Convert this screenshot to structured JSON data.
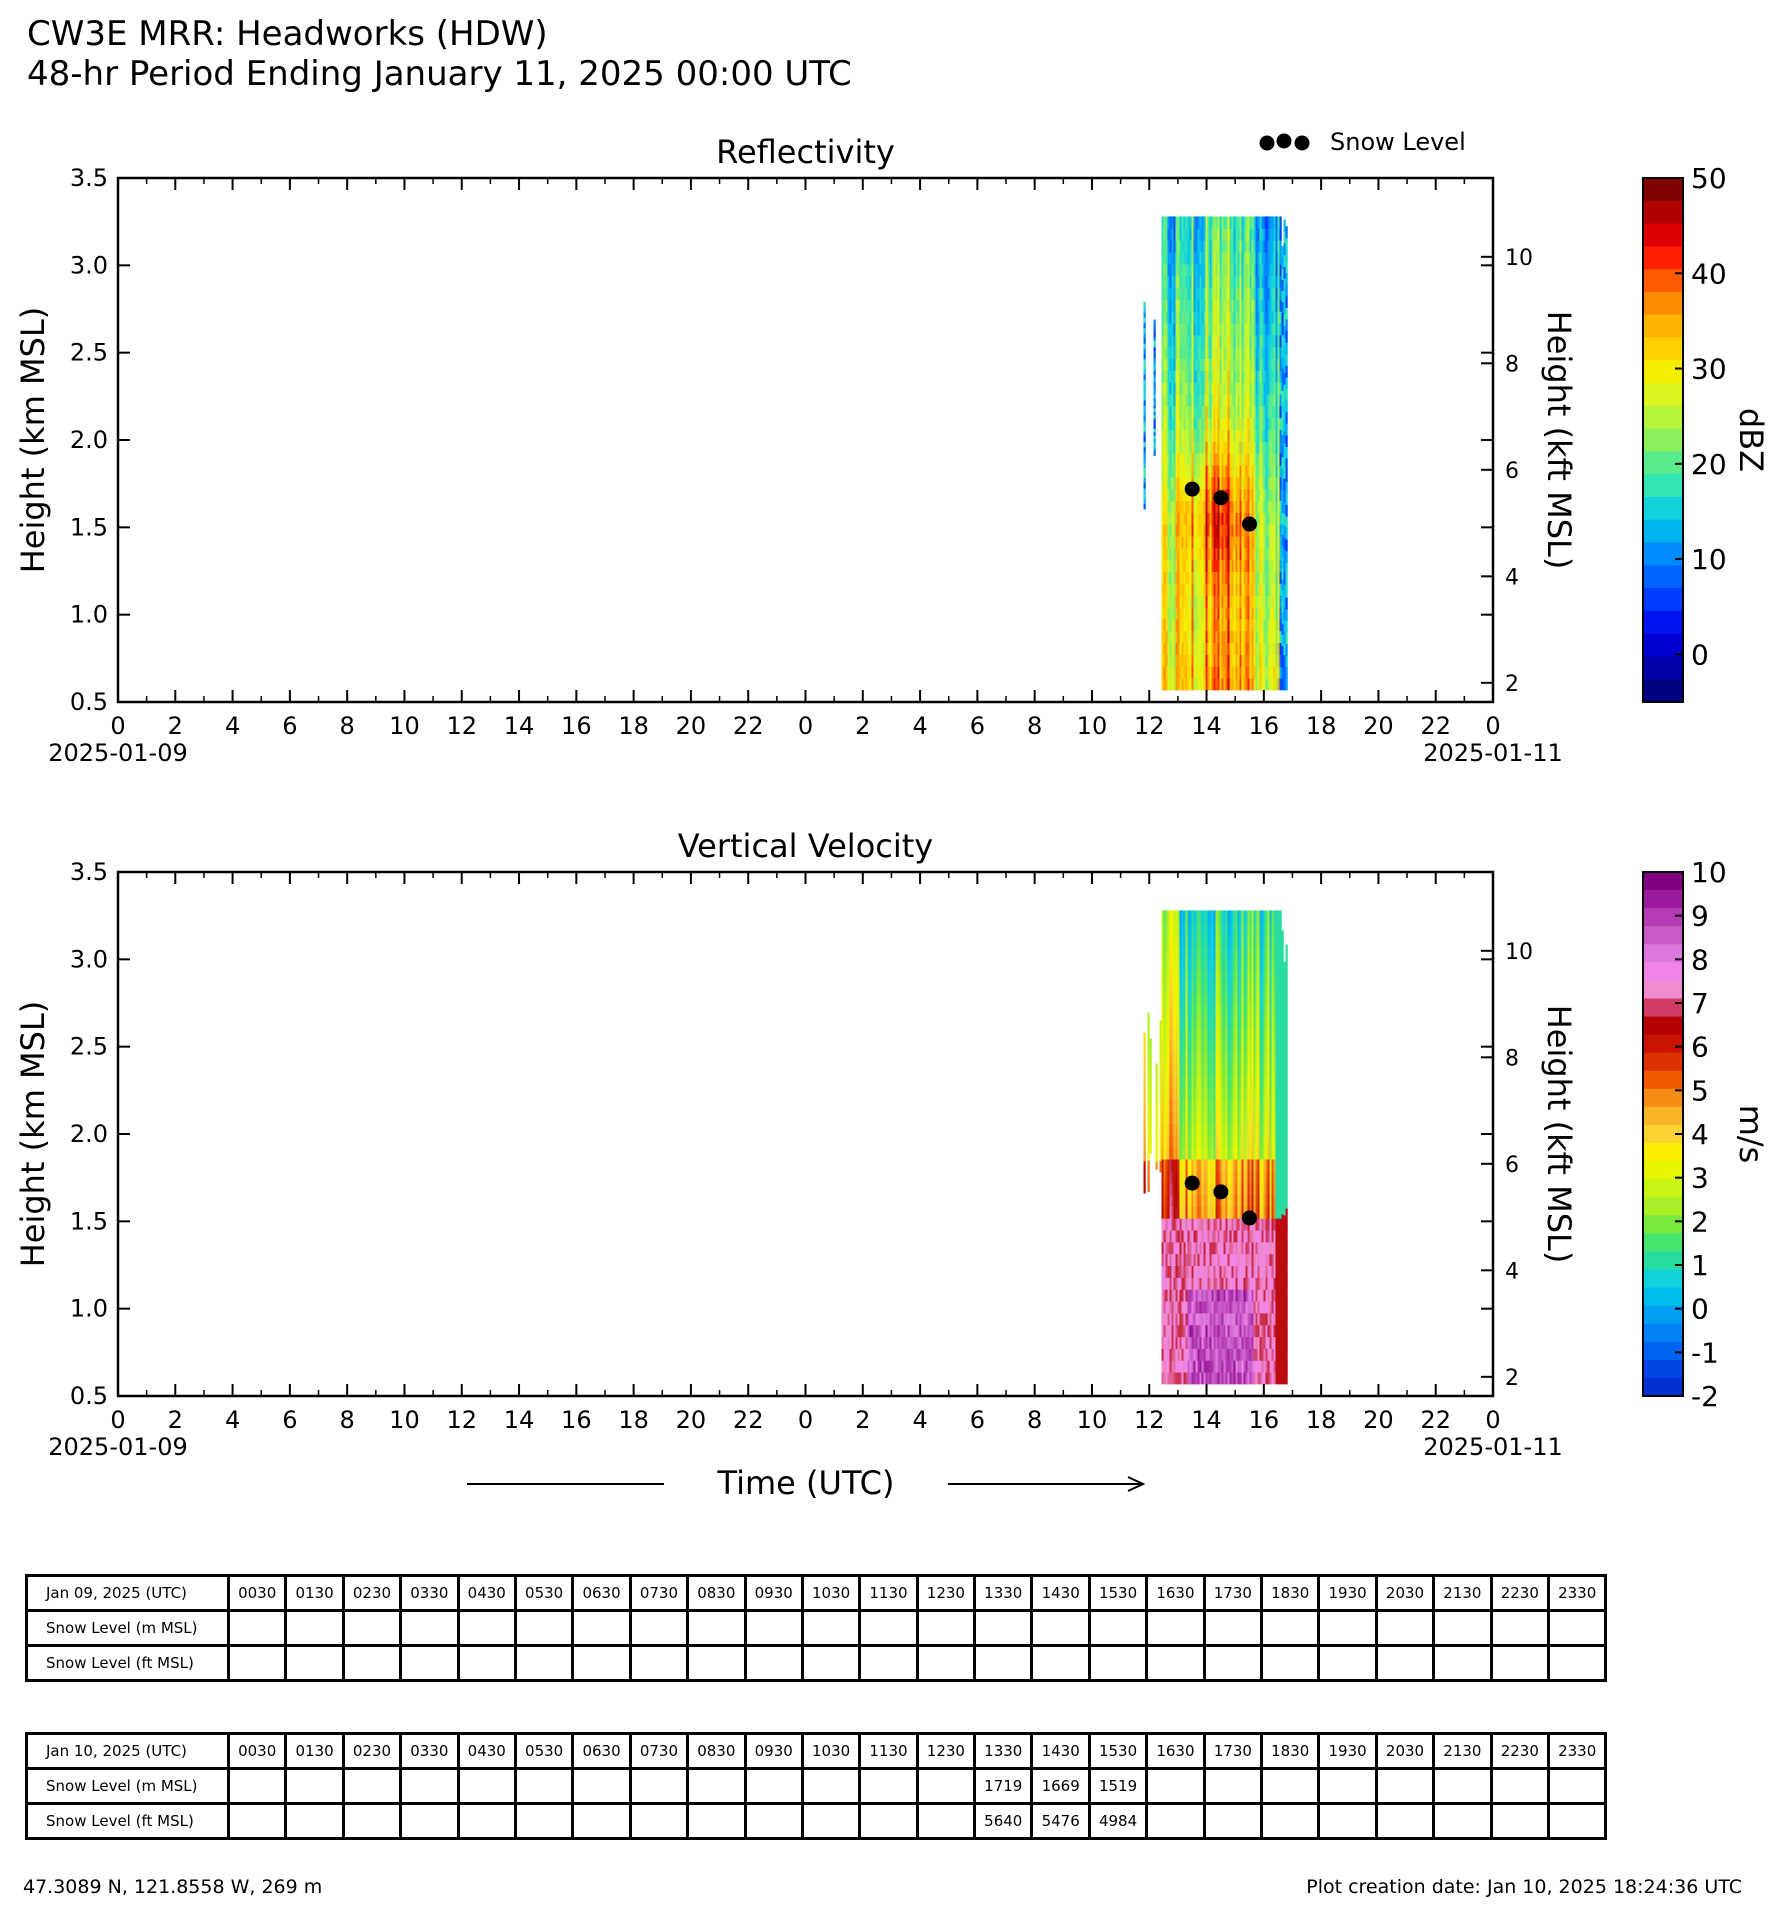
{
  "header": {
    "title": "CW3E MRR: Headworks (HDW)",
    "subtitle": "48-hr Period Ending January 11, 2025 00:00 UTC"
  },
  "legend": {
    "snow_level_label": "Snow Level"
  },
  "time_axis": {
    "xlabel": "Time (UTC)",
    "start_date": "2025-01-09",
    "end_date": "2025-01-11",
    "tick_hours": [
      "0",
      "2",
      "4",
      "6",
      "8",
      "10",
      "12",
      "14",
      "16",
      "18",
      "20",
      "22",
      "0",
      "2",
      "4",
      "6",
      "8",
      "10",
      "12",
      "14",
      "16",
      "18",
      "20",
      "22",
      "0"
    ]
  },
  "panels": [
    {
      "title": "Reflectivity",
      "ylabel_left": "Height (km MSL)",
      "ylabel_right": "Height (kft MSL)",
      "yticks_left": [
        "3.5",
        "3.0",
        "2.5",
        "2.0",
        "1.5",
        "1.0",
        "0.5"
      ],
      "yticks_right": [
        "10",
        "8",
        "6",
        "4",
        "2"
      ],
      "cbar_label": "dBZ",
      "cbar_ticks": [
        "50",
        "40",
        "30",
        "20",
        "10",
        "0"
      ],
      "cbar_colors": [
        "#800000",
        "#b00000",
        "#dd0000",
        "#ff2000",
        "#ff5a00",
        "#ff8c00",
        "#ffb400",
        "#ffd200",
        "#f5ee00",
        "#dcf51e",
        "#b4f53c",
        "#8cf05a",
        "#5aeb8c",
        "#32e6b4",
        "#14d2dc",
        "#00b4f0",
        "#008cff",
        "#0064ff",
        "#003cff",
        "#0014f0",
        "#0000d0",
        "#0000a8",
        "#000080"
      ]
    },
    {
      "title": "Vertical Velocity",
      "ylabel_left": "Height (km MSL)",
      "ylabel_right": "Height (kft MSL)",
      "yticks_left": [
        "3.5",
        "3.0",
        "2.5",
        "2.0",
        "1.5",
        "1.0",
        "0.5"
      ],
      "yticks_right": [
        "10",
        "8",
        "6",
        "4",
        "2"
      ],
      "cbar_label": "m/s",
      "cbar_ticks": [
        "10",
        "9",
        "8",
        "7",
        "6",
        "5",
        "4",
        "3",
        "2",
        "1",
        "0",
        "-1",
        "-2"
      ],
      "cbar_colors": [
        "#800080",
        "#9c1a9c",
        "#b43cb4",
        "#c85ac8",
        "#dc78dc",
        "#f084e6",
        "#f08cd2",
        "#d23c64",
        "#b40000",
        "#c81400",
        "#dc3200",
        "#f05a00",
        "#f58c14",
        "#fab428",
        "#fad232",
        "#faf000",
        "#e6f500",
        "#c8f514",
        "#aaf028",
        "#78eb3c",
        "#46e66e",
        "#28dca0",
        "#14d2dc",
        "#00beec",
        "#00a0f5",
        "#0082f5",
        "#0064f0",
        "#0046e6",
        "#0032d2"
      ]
    }
  ],
  "chart_data": [
    {
      "type": "heatmap",
      "title": "Reflectivity",
      "xlabel": "Time (UTC)",
      "ylabel": "Height (km MSL)",
      "y2label": "Height (kft MSL)",
      "xlim_hours": [
        0,
        48
      ],
      "ylim_km": [
        0.5,
        3.5
      ],
      "y2lim_kft": [
        1.64,
        11.48
      ],
      "colorbar": {
        "label": "dBZ",
        "range": [
          -5,
          50
        ]
      },
      "data_extent": {
        "time_hours": [
          35.8,
          40.8
        ],
        "height_km": [
          0.57,
          3.28
        ]
      },
      "snow_level_points": [
        {
          "time_hours": 37.5,
          "height_km": 1.719
        },
        {
          "time_hours": 38.5,
          "height_km": 1.669
        },
        {
          "time_hours": 39.5,
          "height_km": 1.519
        }
      ]
    },
    {
      "type": "heatmap",
      "title": "Vertical Velocity",
      "xlabel": "Time (UTC)",
      "ylabel": "Height (km MSL)",
      "y2label": "Height (kft MSL)",
      "xlim_hours": [
        0,
        48
      ],
      "ylim_km": [
        0.5,
        3.5
      ],
      "y2lim_kft": [
        1.64,
        11.48
      ],
      "colorbar": {
        "label": "m/s",
        "range": [
          -2,
          10
        ]
      },
      "data_extent": {
        "time_hours": [
          35.8,
          40.8
        ],
        "height_km": [
          0.57,
          3.28
        ]
      },
      "snow_level_points": [
        {
          "time_hours": 37.5,
          "height_km": 1.719
        },
        {
          "time_hours": 38.5,
          "height_km": 1.669
        },
        {
          "time_hours": 39.5,
          "height_km": 1.519
        }
      ]
    }
  ],
  "tables": [
    {
      "header_label": "Jan 09, 2025 (UTC)",
      "times": [
        "0030",
        "0130",
        "0230",
        "0330",
        "0430",
        "0530",
        "0630",
        "0730",
        "0830",
        "0930",
        "1030",
        "1130",
        "1230",
        "1330",
        "1430",
        "1530",
        "1630",
        "1730",
        "1830",
        "1930",
        "2030",
        "2130",
        "2230",
        "2330"
      ],
      "rows": [
        {
          "label": "Snow Level (m MSL)",
          "values": [
            "",
            "",
            "",
            "",
            "",
            "",
            "",
            "",
            "",
            "",
            "",
            "",
            "",
            "",
            "",
            "",
            "",
            "",
            "",
            "",
            "",
            "",
            "",
            ""
          ]
        },
        {
          "label": "Snow Level (ft MSL)",
          "values": [
            "",
            "",
            "",
            "",
            "",
            "",
            "",
            "",
            "",
            "",
            "",
            "",
            "",
            "",
            "",
            "",
            "",
            "",
            "",
            "",
            "",
            "",
            "",
            ""
          ]
        }
      ]
    },
    {
      "header_label": "Jan 10, 2025 (UTC)",
      "times": [
        "0030",
        "0130",
        "0230",
        "0330",
        "0430",
        "0530",
        "0630",
        "0730",
        "0830",
        "0930",
        "1030",
        "1130",
        "1230",
        "1330",
        "1430",
        "1530",
        "1630",
        "1730",
        "1830",
        "1930",
        "2030",
        "2130",
        "2230",
        "2330"
      ],
      "rows": [
        {
          "label": "Snow Level (m MSL)",
          "values": [
            "",
            "",
            "",
            "",
            "",
            "",
            "",
            "",
            "",
            "",
            "",
            "",
            "",
            "1719",
            "1669",
            "1519",
            "",
            "",
            "",
            "",
            "",
            "",
            "",
            ""
          ]
        },
        {
          "label": "Snow Level (ft MSL)",
          "values": [
            "",
            "",
            "",
            "",
            "",
            "",
            "",
            "",
            "",
            "",
            "",
            "",
            "",
            "5640",
            "5476",
            "4984",
            "",
            "",
            "",
            "",
            "",
            "",
            "",
            ""
          ]
        }
      ]
    }
  ],
  "footer": {
    "location": "47.3089 N, 121.8558 W, 269 m",
    "creation": "Plot creation date: Jan 10, 2025 18:24:36 UTC"
  }
}
